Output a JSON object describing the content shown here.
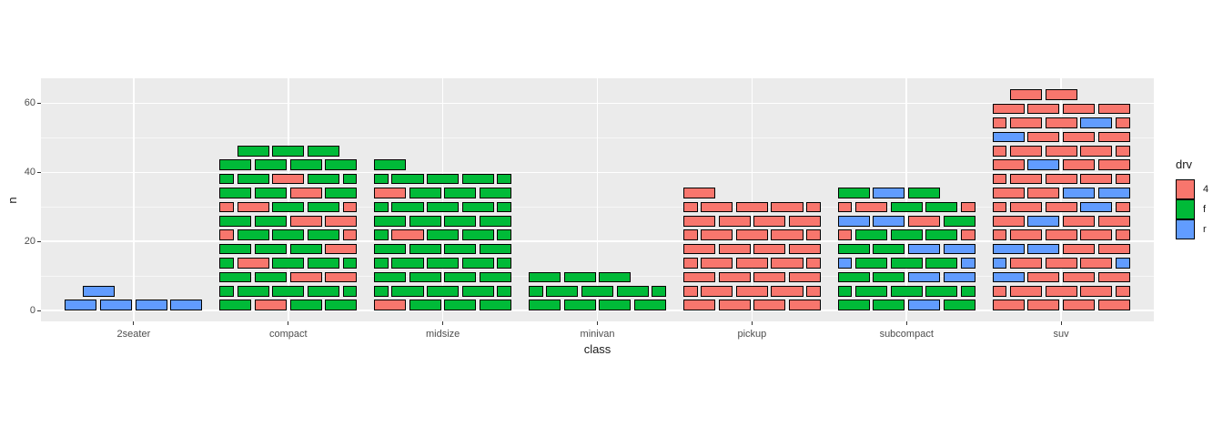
{
  "chart_data": {
    "type": "bar",
    "subtype": "brick-stack",
    "title": "",
    "xlabel": "class",
    "ylabel": "n",
    "categories": [
      "2seater",
      "compact",
      "midsize",
      "minivan",
      "pickup",
      "subcompact",
      "suv"
    ],
    "series": [
      {
        "name": "4",
        "color": "#F8766D",
        "values": [
          0,
          12,
          3,
          0,
          33,
          4,
          51
        ]
      },
      {
        "name": "f",
        "color": "#00BA38",
        "values": [
          0,
          35,
          38,
          11,
          0,
          22,
          0
        ]
      },
      {
        "name": "r",
        "color": "#619CFF",
        "values": [
          5,
          0,
          0,
          0,
          0,
          9,
          11
        ]
      }
    ],
    "totals": [
      5,
      47,
      41,
      11,
      33,
      35,
      62
    ],
    "y_ticks": [
      0,
      20,
      40,
      60
    ],
    "y_tick_labels": [
      "0",
      "20",
      "40",
      "60"
    ],
    "y_minor_ticks": [
      10,
      30,
      50
    ],
    "ylim": [
      -3.2,
      67.2
    ],
    "grid": "major+minor",
    "legend_position": "right",
    "legend_title": "drv",
    "legend_items": [
      "4",
      "f",
      "r"
    ],
    "bricks_per_row": 4,
    "brick_encoding": "rows listed bottom-first; one char per brick (4/f/r); odd-index rows are offset courses where the first char is the edge brick split into two halves",
    "brick_rows": {
      "2seater": [
        "rrrr",
        "r"
      ],
      "compact": [
        "f4ff",
        "ffff",
        "ff44",
        "f4ff",
        "fff4",
        "4fff",
        "ff44",
        "44ff",
        "ff4f",
        "ff4f",
        "ffff",
        "fff"
      ],
      "midsize": [
        "4fff",
        "ffff",
        "ffff",
        "ffff",
        "ffff",
        "f4ff",
        "ffff",
        "ffff",
        "4fff",
        "ffff",
        "f"
      ],
      "minivan": [
        "ffff",
        "ffff",
        "fff"
      ],
      "pickup": [
        "4444",
        "4444",
        "4444",
        "4444",
        "4444",
        "4444",
        "4444",
        "4444",
        "4"
      ],
      "subcompact": [
        "ffrf",
        "ffff",
        "ffrr",
        "rfff",
        "ffrr",
        "4fff",
        "rr4f",
        "44ff",
        "frf"
      ],
      "suv": [
        "4444",
        "4444",
        "r444",
        "r444",
        "rr44",
        "4444",
        "4r44",
        "444r",
        "44rr",
        "4444",
        "4r44",
        "4444",
        "r444",
        "444r",
        "4444",
        "44"
      ]
    }
  },
  "style": {
    "panel_bg": "#EBEBEB",
    "grid_major_color": "#FFFFFF",
    "grid_minor_color": "rgba(255,255,255,0.6)",
    "brick_border_color": "#000000",
    "tick_color": "#333333",
    "tick_label_color": "#4D4D4D",
    "title_color": "#1a1a1a",
    "page_bg": "#FFFFFF"
  }
}
